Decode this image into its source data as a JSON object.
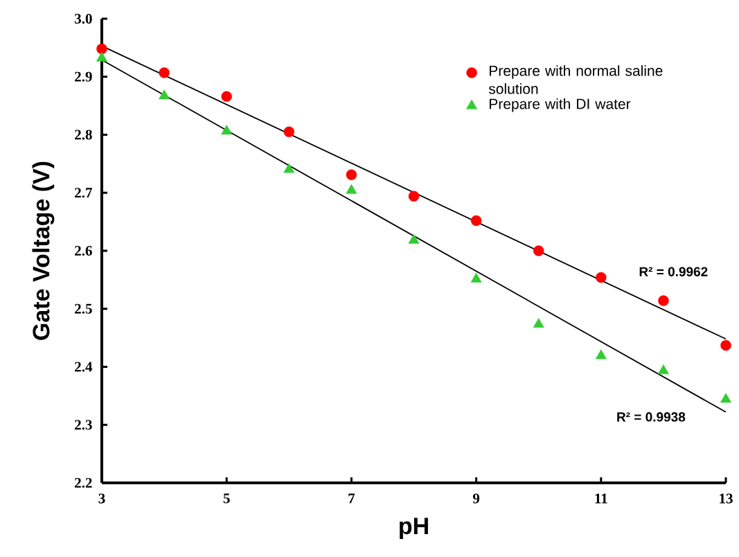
{
  "chart_data": {
    "type": "scatter",
    "xlabel": "pH",
    "ylabel": "Gate Voltage (V)",
    "x": [
      3,
      4,
      5,
      6,
      7,
      8,
      9,
      10,
      11,
      12,
      13
    ],
    "series": [
      {
        "name": "Prepare with normal saline solution",
        "color": "#ff0000",
        "marker": "circle",
        "values": [
          2.948,
          2.907,
          2.866,
          2.805,
          2.731,
          2.694,
          2.652,
          2.6,
          2.554,
          2.514,
          2.437
        ]
      },
      {
        "name": "Prepare with DI water",
        "color": "#33cc33",
        "marker": "triangle",
        "values": [
          2.932,
          2.867,
          2.806,
          2.74,
          2.704,
          2.618,
          2.551,
          2.473,
          2.419,
          2.393,
          2.344
        ]
      },
      {
        "type": "line",
        "color": "#000000",
        "marker": "none",
        "values": [
          2.953,
          null,
          null,
          null,
          null,
          null,
          null,
          null,
          null,
          null,
          2.448
        ]
      },
      {
        "type": "line",
        "color": "#000000",
        "marker": "none",
        "values": [
          2.929,
          null,
          null,
          null,
          null,
          null,
          null,
          null,
          null,
          null,
          2.322
        ]
      }
    ],
    "xlim": [
      3,
      13
    ],
    "ylim": [
      2.2,
      3.0
    ],
    "xticks": [
      3,
      5,
      7,
      9,
      11,
      13
    ],
    "yticks": [
      2.2,
      2.3,
      2.4,
      2.5,
      2.6,
      2.7,
      2.8,
      2.9,
      {
        "value": 3,
        "label": "3.0"
      }
    ],
    "legend": "top right",
    "annotations": [
      "R² = 0.9962",
      "R² = 0.9938"
    ]
  }
}
